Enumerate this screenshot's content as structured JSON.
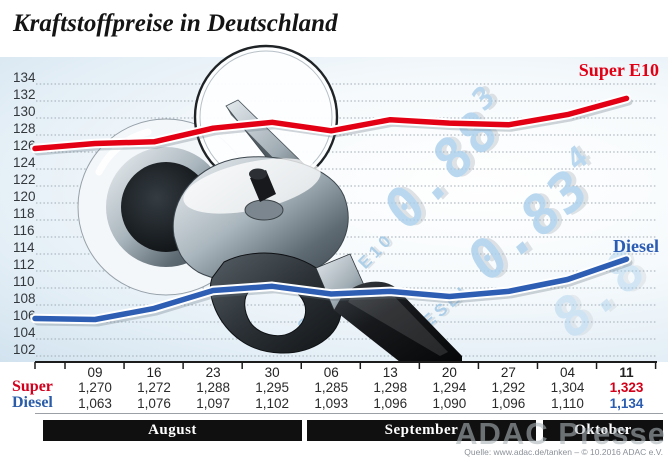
{
  "title": "Kraftstoffpreise in Deutschland",
  "legend": {
    "super": "Super E10",
    "diesel": "Diesel"
  },
  "row_labels": {
    "super": "Super",
    "diesel": "Diesel"
  },
  "months": {
    "august": "August",
    "september": "September",
    "oktober": "Oktober"
  },
  "watermarks": {
    "adac": "ADAC Presse",
    "display1_label": "SUPER E10",
    "display1_digits": "0.88",
    "display1_sup": "3",
    "display2_label": "DIESEL",
    "display2_digits": "0.83",
    "display2_sup": "4",
    "display3_digits": "8.8"
  },
  "source": "Quelle: www.adac.de/tanken – © 10.2016 ADAC e.V.",
  "chart_data": {
    "type": "line",
    "title": "Kraftstoffpreise in Deutschland",
    "x": [
      "09",
      "16",
      "23",
      "30",
      "06",
      "13",
      "20",
      "27",
      "04",
      "11"
    ],
    "x_months": {
      "August": [
        "09",
        "16",
        "23",
        "30"
      ],
      "September": [
        "06",
        "13",
        "20",
        "27"
      ],
      "Oktober": [
        "04",
        "11"
      ]
    },
    "ylim": [
      102,
      134
    ],
    "y_ticks": [
      "134",
      "132",
      "130",
      "128",
      "126",
      "124",
      "122",
      "120",
      "118",
      "116",
      "114",
      "112",
      "110",
      "108",
      "106",
      "104",
      "102"
    ],
    "grid": "dotted-horizontal",
    "legend_position": "right-inline",
    "series": [
      {
        "name": "Super E10",
        "color": "#e30015",
        "values": [
          127.0,
          127.2,
          128.8,
          129.5,
          128.5,
          129.8,
          129.4,
          129.2,
          130.4,
          132.3
        ]
      },
      {
        "name": "Diesel",
        "color": "#2d5eb4",
        "values": [
          106.3,
          107.6,
          109.7,
          110.2,
          109.3,
          109.6,
          109.0,
          109.6,
          111.0,
          113.4
        ]
      }
    ],
    "table": {
      "super": [
        "1,270",
        "1,272",
        "1,288",
        "1,295",
        "1,285",
        "1,298",
        "1,294",
        "1,292",
        "1,304",
        "1,323"
      ],
      "diesel": [
        "1,063",
        "1,076",
        "1,097",
        "1,102",
        "1,093",
        "1,096",
        "1,090",
        "1,096",
        "1,110",
        "1,134"
      ]
    }
  }
}
